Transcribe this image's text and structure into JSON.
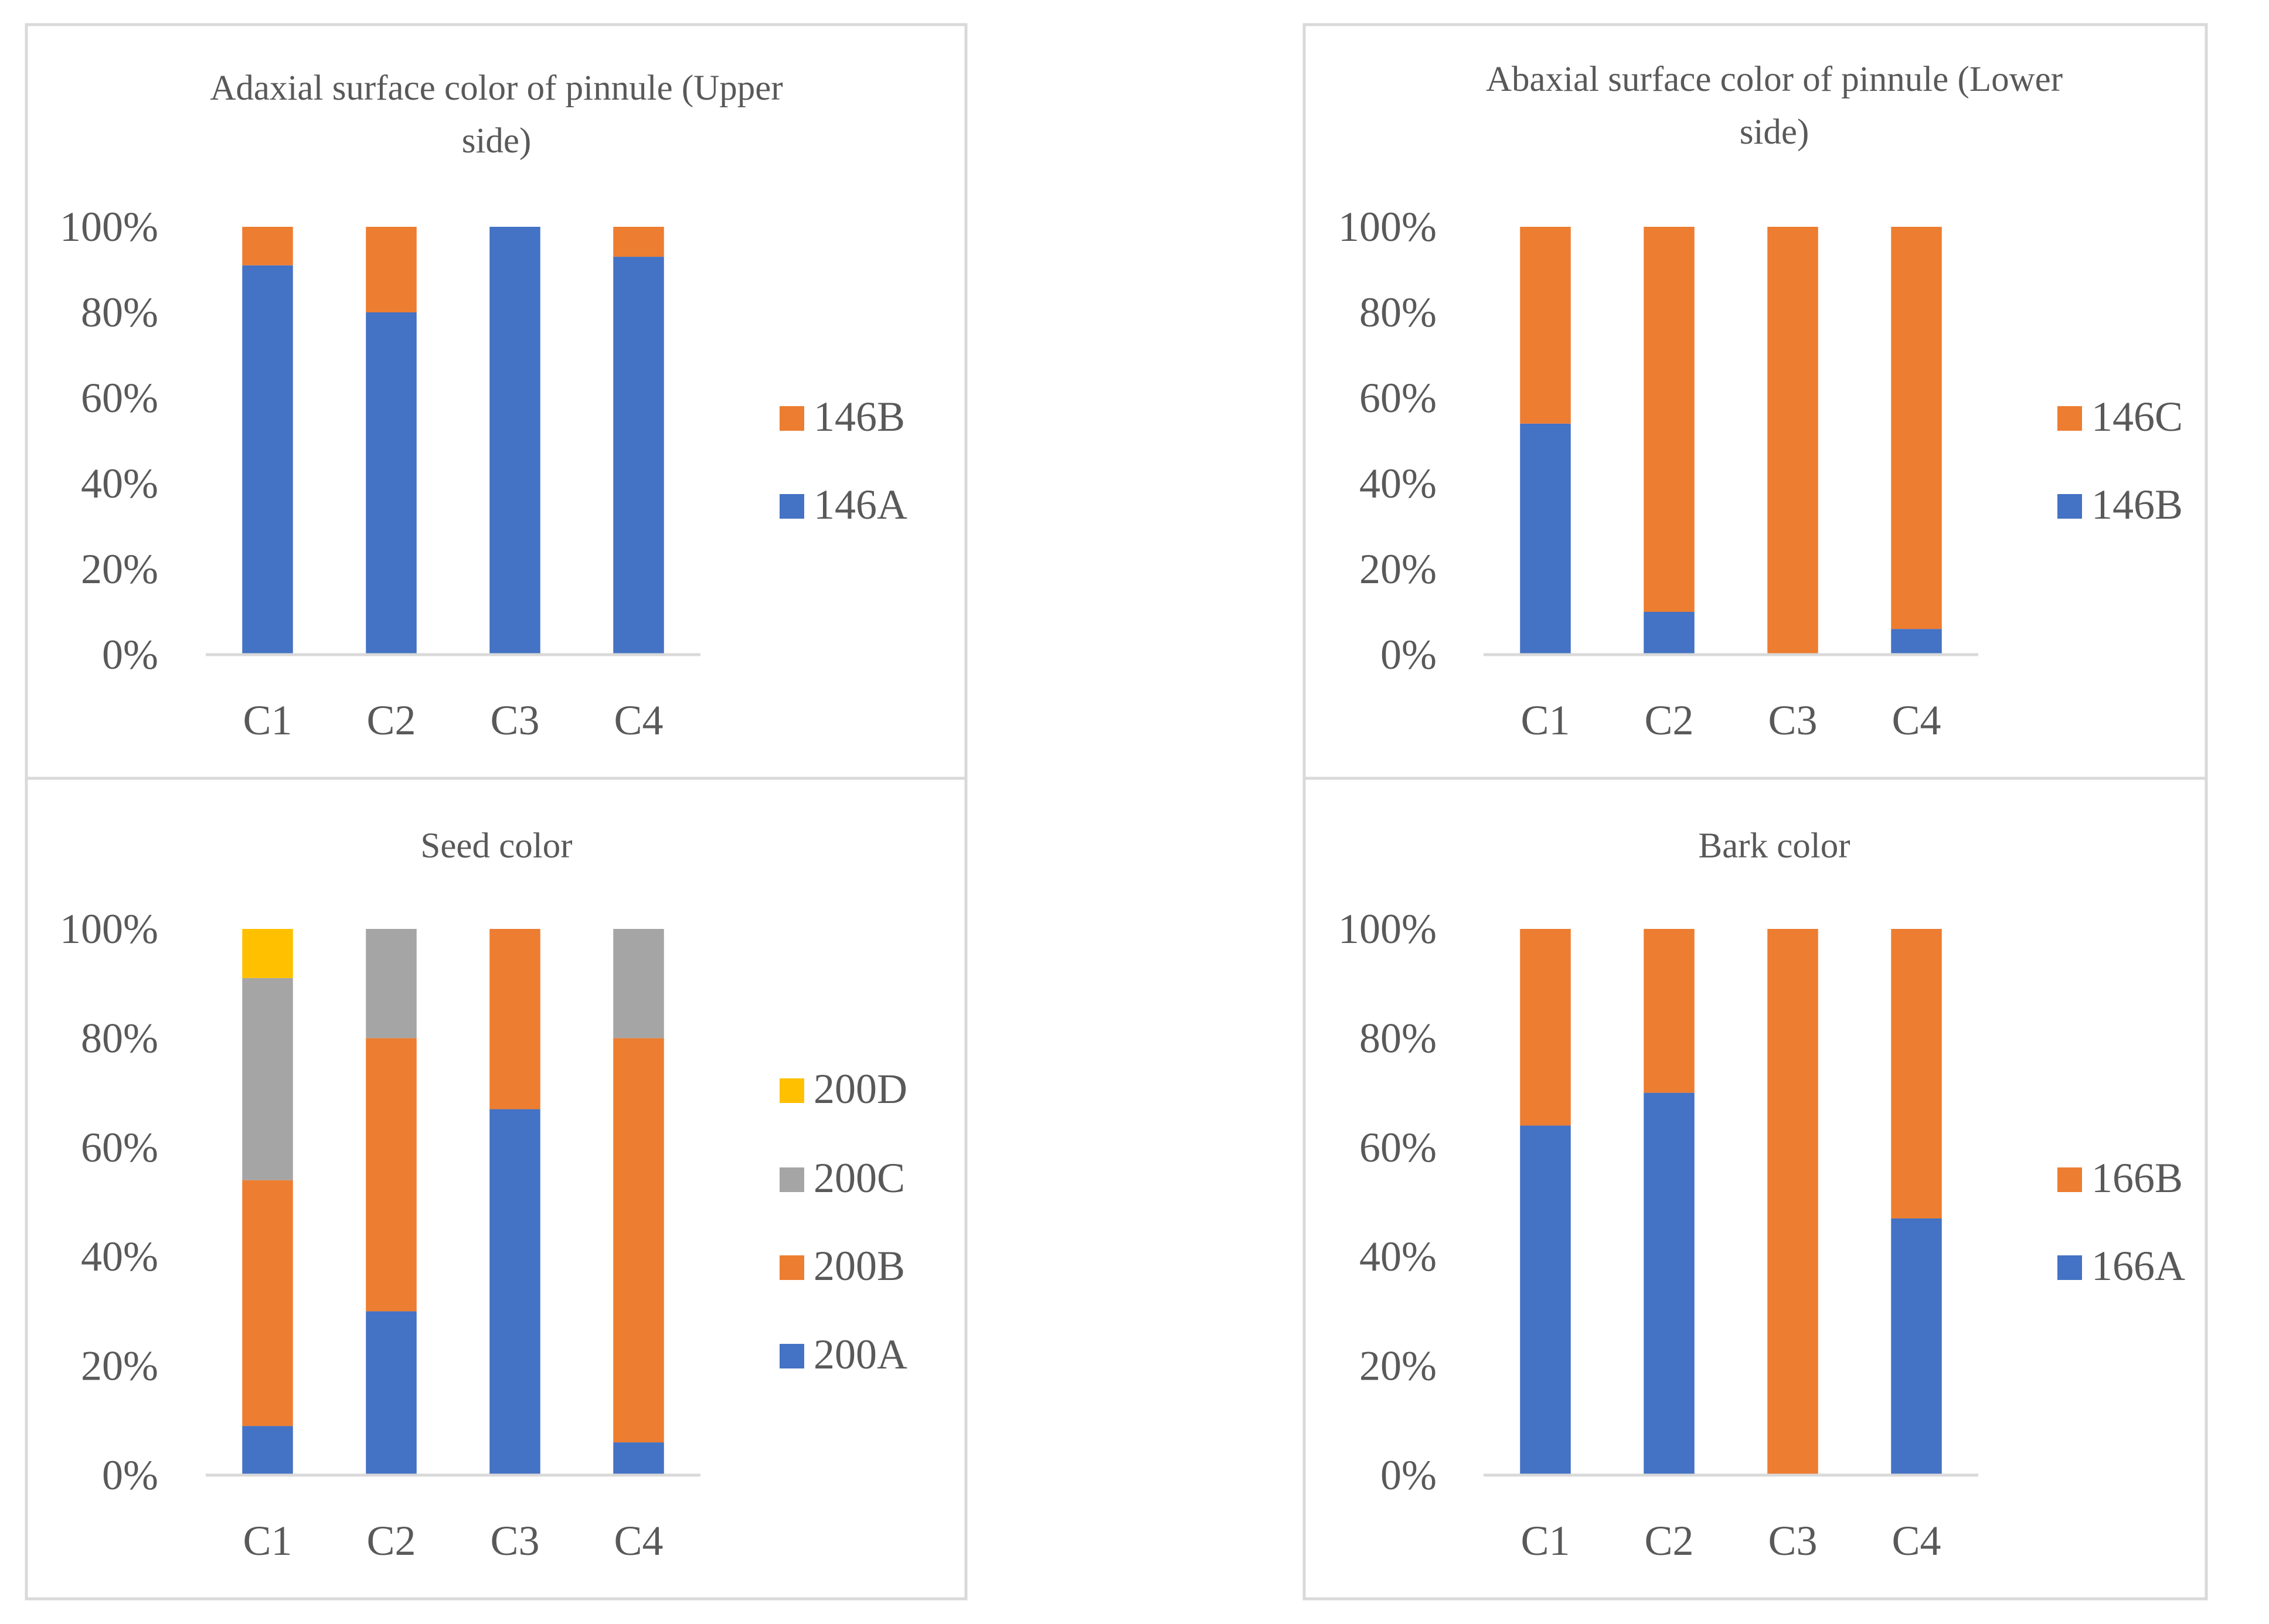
{
  "colors": {
    "series1": "#4472C4",
    "series2": "#ED7D31",
    "series3": "#A5A5A5",
    "series4": "#FFC000",
    "axis": "#D9D9D9",
    "text": "#595959",
    "frame": "#D9D9D9"
  },
  "chart_data": [
    {
      "type": "bar",
      "stacked": "100%",
      "title_lines": [
        "Adaxial surface color of pinnule (Upper",
        "side)"
      ],
      "categories": [
        "C1",
        "C2",
        "C3",
        "C4"
      ],
      "y_ticks": [
        "0%",
        "20%",
        "40%",
        "60%",
        "80%",
        "100%"
      ],
      "ylim": [
        0,
        100
      ],
      "legend_position": "right",
      "series": [
        {
          "name": "146A",
          "values": [
            91,
            80,
            100,
            93
          ]
        },
        {
          "name": "146B",
          "values": [
            9,
            20,
            0,
            7
          ]
        }
      ]
    },
    {
      "type": "bar",
      "stacked": "100%",
      "title_lines": [
        "Abaxial surface color of pinnule (Lower",
        "side)"
      ],
      "categories": [
        "C1",
        "C2",
        "C3",
        "C4"
      ],
      "y_ticks": [
        "0%",
        "20%",
        "40%",
        "60%",
        "80%",
        "100%"
      ],
      "ylim": [
        0,
        100
      ],
      "legend_position": "right",
      "series": [
        {
          "name": "146B",
          "values": [
            54,
            10,
            0,
            6
          ]
        },
        {
          "name": "146C",
          "values": [
            46,
            90,
            100,
            94
          ]
        }
      ]
    },
    {
      "type": "bar",
      "stacked": "100%",
      "title_lines": [
        "Seed color"
      ],
      "categories": [
        "C1",
        "C2",
        "C3",
        "C4"
      ],
      "y_ticks": [
        "0%",
        "20%",
        "40%",
        "60%",
        "80%",
        "100%"
      ],
      "ylim": [
        0,
        100
      ],
      "legend_position": "right",
      "series": [
        {
          "name": "200A",
          "values": [
            9,
            30,
            67,
            6
          ]
        },
        {
          "name": "200B",
          "values": [
            45,
            50,
            33,
            74
          ]
        },
        {
          "name": "200C",
          "values": [
            37,
            20,
            0,
            20
          ]
        },
        {
          "name": "200D",
          "values": [
            9,
            0,
            0,
            0
          ]
        }
      ]
    },
    {
      "type": "bar",
      "stacked": "100%",
      "title_lines": [
        "Bark color"
      ],
      "categories": [
        "C1",
        "C2",
        "C3",
        "C4"
      ],
      "y_ticks": [
        "0%",
        "20%",
        "40%",
        "60%",
        "80%",
        "100%"
      ],
      "ylim": [
        0,
        100
      ],
      "legend_position": "right",
      "series": [
        {
          "name": "166A",
          "values": [
            64,
            70,
            0,
            47
          ]
        },
        {
          "name": "166B",
          "values": [
            36,
            30,
            100,
            53
          ]
        }
      ]
    }
  ]
}
